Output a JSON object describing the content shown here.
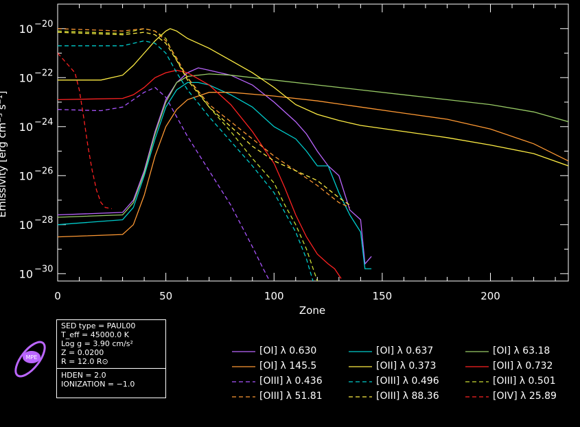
{
  "chart_data": {
    "type": "line",
    "title": "",
    "xlabel": "Zone",
    "ylabel": "Emissivity [erg cm⁻³ s⁻¹]",
    "xlim": [
      0,
      236
    ],
    "ylim_log10": [
      -30.3,
      -19.0
    ],
    "yscale": "log",
    "xticks": [
      0,
      50,
      100,
      150,
      200
    ],
    "xtick_labels": [
      "0",
      "50",
      "100",
      "150",
      "200"
    ],
    "ytick_exponents": [
      -30,
      -28,
      -26,
      -24,
      -22,
      -20
    ],
    "ytick_base": "10",
    "grid": false,
    "legend_position": "bottom",
    "series": [
      {
        "name": "[OI]  λ 0.630",
        "color": "#bb66ff",
        "dash": false,
        "x": [
          0,
          30,
          35,
          40,
          45,
          50,
          55,
          60,
          65,
          70,
          80,
          90,
          100,
          110,
          115,
          120,
          125,
          130,
          135,
          140,
          142,
          145
        ],
        "log10_y": [
          -27.6,
          -27.5,
          -27.0,
          -25.8,
          -24.2,
          -22.9,
          -22.2,
          -21.8,
          -21.6,
          -21.7,
          -21.9,
          -22.3,
          -23.0,
          -23.8,
          -24.3,
          -25.0,
          -25.6,
          -26.0,
          -27.4,
          -27.8,
          -29.6,
          -29.3
        ]
      },
      {
        "name": "[OI]  λ 0.637",
        "color": "#00cccc",
        "dash": false,
        "x": [
          0,
          30,
          35,
          40,
          45,
          50,
          55,
          60,
          65,
          70,
          80,
          90,
          100,
          110,
          115,
          120,
          125,
          130,
          135,
          140,
          142,
          145
        ],
        "log10_y": [
          -28.0,
          -27.8,
          -27.3,
          -26.0,
          -24.5,
          -23.2,
          -22.5,
          -22.2,
          -22.2,
          -22.3,
          -22.7,
          -23.2,
          -24.0,
          -24.5,
          -25.0,
          -25.6,
          -25.6,
          -26.7,
          -27.6,
          -28.3,
          -29.8,
          -29.8
        ]
      },
      {
        "name": "[OI]  λ 63.18",
        "color": "#99cc66",
        "dash": false,
        "x": [
          0,
          30,
          35,
          40,
          45,
          50,
          55,
          60,
          70,
          80,
          100,
          120,
          140,
          160,
          180,
          200,
          220,
          236
        ],
        "log10_y": [
          -27.7,
          -27.6,
          -27.1,
          -25.9,
          -24.3,
          -23.0,
          -22.2,
          -21.95,
          -21.85,
          -21.9,
          -22.1,
          -22.3,
          -22.5,
          -22.7,
          -22.9,
          -23.1,
          -23.4,
          -23.8
        ]
      },
      {
        "name": "[OI]  λ 145.5",
        "color": "#ff9933",
        "dash": false,
        "x": [
          0,
          30,
          35,
          40,
          45,
          50,
          55,
          60,
          70,
          80,
          100,
          120,
          140,
          160,
          180,
          200,
          220,
          236
        ],
        "log10_y": [
          -28.5,
          -28.4,
          -28.0,
          -26.8,
          -25.2,
          -24.0,
          -23.3,
          -22.9,
          -22.6,
          -22.6,
          -22.75,
          -22.95,
          -23.2,
          -23.45,
          -23.7,
          -24.1,
          -24.7,
          -25.4
        ]
      },
      {
        "name": "[OII]  λ 0.373",
        "color": "#ffee44",
        "dash": false,
        "x": [
          0,
          20,
          30,
          35,
          40,
          45,
          50,
          52,
          55,
          60,
          70,
          80,
          90,
          100,
          110,
          120,
          130,
          140,
          160,
          180,
          200,
          220,
          236
        ],
        "log10_y": [
          -22.1,
          -22.1,
          -21.9,
          -21.5,
          -21.0,
          -20.5,
          -20.1,
          -20.0,
          -20.1,
          -20.4,
          -20.8,
          -21.3,
          -21.8,
          -22.4,
          -23.1,
          -23.5,
          -23.75,
          -23.95,
          -24.2,
          -24.45,
          -24.75,
          -25.1,
          -25.6
        ]
      },
      {
        "name": "[OII]  λ 0.732",
        "color": "#ff2222",
        "dash": false,
        "x": [
          0,
          30,
          35,
          40,
          45,
          50,
          55,
          60,
          70,
          80,
          90,
          100,
          105,
          110,
          115,
          120,
          125,
          128,
          131
        ],
        "log10_y": [
          -22.9,
          -22.85,
          -22.7,
          -22.4,
          -22.0,
          -21.8,
          -21.7,
          -21.8,
          -22.3,
          -23.1,
          -24.2,
          -25.5,
          -26.5,
          -27.6,
          -28.5,
          -29.2,
          -29.6,
          -29.8,
          -30.2
        ]
      },
      {
        "name": "[OIII]  λ 0.436",
        "color": "#aa55ff",
        "dash": true,
        "x": [
          0,
          20,
          30,
          35,
          40,
          45,
          50,
          55,
          60,
          70,
          80,
          90,
          95,
          98
        ],
        "log10_y": [
          -23.3,
          -23.35,
          -23.2,
          -22.9,
          -22.6,
          -22.4,
          -22.8,
          -23.6,
          -24.4,
          -25.8,
          -27.2,
          -28.9,
          -29.8,
          -30.3
        ]
      },
      {
        "name": "[OIII]  λ 0.496",
        "color": "#00cccc",
        "dash": true,
        "x": [
          0,
          30,
          35,
          40,
          45,
          50,
          55,
          60,
          70,
          80,
          90,
          100,
          105,
          110,
          115,
          118
        ],
        "log10_y": [
          -20.7,
          -20.7,
          -20.6,
          -20.5,
          -20.6,
          -21.0,
          -21.8,
          -22.5,
          -23.6,
          -24.6,
          -25.6,
          -26.7,
          -27.5,
          -28.3,
          -29.4,
          -30.3
        ]
      },
      {
        "name": "[OIII]  λ 0.501",
        "color": "#ccdd33",
        "dash": true,
        "x": [
          0,
          30,
          35,
          40,
          45,
          50,
          55,
          60,
          70,
          80,
          90,
          100,
          105,
          110,
          115,
          120
        ],
        "log10_y": [
          -20.1,
          -20.2,
          -20.1,
          -20.0,
          -20.1,
          -20.4,
          -21.3,
          -22.0,
          -23.2,
          -24.2,
          -25.3,
          -26.3,
          -27.2,
          -28.0,
          -29.0,
          -30.3
        ]
      },
      {
        "name": "[OIII]  λ 51.81",
        "color": "#ff9933",
        "dash": true,
        "x": [
          0,
          30,
          35,
          40,
          45,
          50,
          55,
          60,
          70,
          80,
          90,
          100,
          110,
          120,
          130,
          135
        ],
        "log10_y": [
          -20.0,
          -20.1,
          -20.05,
          -20.0,
          -20.1,
          -20.5,
          -21.2,
          -22.0,
          -23.1,
          -23.8,
          -24.5,
          -25.2,
          -25.8,
          -26.4,
          -27.1,
          -27.3
        ]
      },
      {
        "name": "[OIII]  λ 88.36",
        "color": "#ffee44",
        "dash": true,
        "x": [
          0,
          30,
          35,
          40,
          45,
          50,
          55,
          60,
          70,
          80,
          90,
          100,
          110,
          120,
          130,
          135
        ],
        "log10_y": [
          -20.15,
          -20.25,
          -20.2,
          -20.15,
          -20.25,
          -20.6,
          -21.3,
          -22.1,
          -23.2,
          -24.0,
          -24.8,
          -25.4,
          -25.8,
          -26.2,
          -26.9,
          -27.2
        ]
      },
      {
        "name": "[OIV]  λ 25.89",
        "color": "#ff2222",
        "dash": true,
        "x": [
          0,
          4,
          8,
          10,
          12,
          14,
          16,
          18,
          20,
          22,
          25
        ],
        "log10_y": [
          -21.0,
          -21.4,
          -21.8,
          -22.5,
          -23.6,
          -24.8,
          -25.8,
          -26.6,
          -27.1,
          -27.3,
          -27.35
        ]
      }
    ]
  },
  "info": {
    "lines_top": [
      "SED type = PAUL00",
      "T_eff = 45000.0 K",
      "Log g = 3.90 cm/s²",
      "Z = 0.0200",
      "R = 12.0 R⊙"
    ],
    "lines_bottom": [
      "HDEN = 2.0",
      "IONIZATION = −1.0"
    ]
  },
  "logo": {
    "text": "MPE",
    "color": "#bb66ff",
    "icon": "mpe-orbit-logo"
  }
}
